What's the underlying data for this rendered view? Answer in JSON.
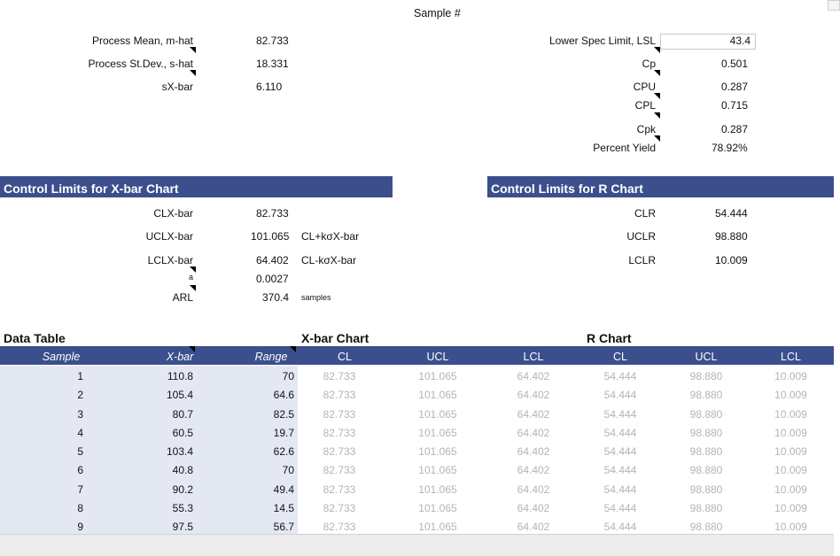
{
  "sample_header": "Sample #",
  "stats_left": [
    {
      "label": "Process Mean, m-hat",
      "value": "82.733"
    },
    {
      "label": "Process St.Dev., s-hat",
      "value": "18.331"
    },
    {
      "label": "sX-bar",
      "value": "6.110"
    }
  ],
  "spec": {
    "lsl_label": "Lower Spec Limit, LSL",
    "lsl_value": "43.4",
    "cp_label": "Cp",
    "cp_value": "0.501",
    "cpu_label": "CPU",
    "cpu_value": "0.287",
    "cpl_label": "CPL",
    "cpl_value": "0.715",
    "cpk_label": "Cpk",
    "cpk_value": "0.287",
    "yield_label": "Percent Yield",
    "yield_value": "78.92%"
  },
  "xbar_limits": {
    "title": "Control Limits for X-bar Chart",
    "rows": [
      {
        "label": "CLX-bar",
        "value": "82.733",
        "note": ""
      },
      {
        "label": "UCLX-bar",
        "value": "101.065",
        "note": "CL+kσX-bar"
      },
      {
        "label": "LCLX-bar",
        "value": "64.402",
        "note": "CL-kσX-bar"
      },
      {
        "label": "a",
        "value": "0.0027",
        "note": ""
      },
      {
        "label": "ARL",
        "value": "370.4",
        "note": "samples"
      }
    ]
  },
  "r_limits": {
    "title": "Control Limits for R Chart",
    "rows": [
      {
        "label": "CLR",
        "value": "54.444"
      },
      {
        "label": "UCLR",
        "value": "98.880"
      },
      {
        "label": "LCLR",
        "value": "10.009"
      }
    ]
  },
  "data_table": {
    "title": "Data Table",
    "xbar_chart_title": "X-bar Chart",
    "r_chart_title": "R Chart",
    "headers": [
      "Sample",
      "X-bar",
      "Range",
      "CL",
      "UCL",
      "LCL",
      "CL",
      "UCL",
      "LCL"
    ],
    "rows": [
      [
        "1",
        "110.8",
        "70",
        "82.733",
        "101.065",
        "64.402",
        "54.444",
        "98.880",
        "10.009"
      ],
      [
        "2",
        "105.4",
        "64.6",
        "82.733",
        "101.065",
        "64.402",
        "54.444",
        "98.880",
        "10.009"
      ],
      [
        "3",
        "80.7",
        "82.5",
        "82.733",
        "101.065",
        "64.402",
        "54.444",
        "98.880",
        "10.009"
      ],
      [
        "4",
        "60.5",
        "19.7",
        "82.733",
        "101.065",
        "64.402",
        "54.444",
        "98.880",
        "10.009"
      ],
      [
        "5",
        "103.4",
        "62.6",
        "82.733",
        "101.065",
        "64.402",
        "54.444",
        "98.880",
        "10.009"
      ],
      [
        "6",
        "40.8",
        "70",
        "82.733",
        "101.065",
        "64.402",
        "54.444",
        "98.880",
        "10.009"
      ],
      [
        "7",
        "90.2",
        "49.4",
        "82.733",
        "101.065",
        "64.402",
        "54.444",
        "98.880",
        "10.009"
      ],
      [
        "8",
        "55.3",
        "14.5",
        "82.733",
        "101.065",
        "64.402",
        "54.444",
        "98.880",
        "10.009"
      ],
      [
        "9",
        "97.5",
        "56.7",
        "82.733",
        "101.065",
        "64.402",
        "54.444",
        "98.880",
        "10.009"
      ]
    ]
  },
  "colors": {
    "banner": "#3b4f8c",
    "shade": "#e4e8f2",
    "faded_text": "#b4b4b4"
  }
}
